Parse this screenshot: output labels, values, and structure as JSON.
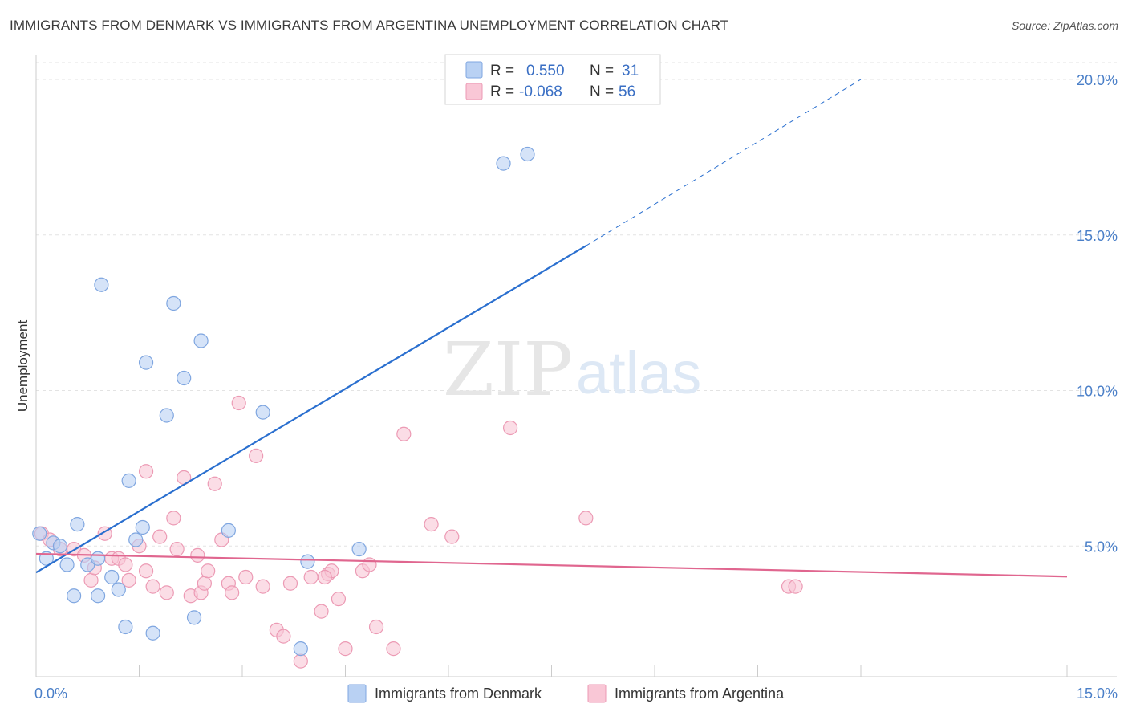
{
  "header": {
    "title": "IMMIGRANTS FROM DENMARK VS IMMIGRANTS FROM ARGENTINA UNEMPLOYMENT CORRELATION CHART",
    "source": "Source: ZipAtlas.com"
  },
  "watermark": {
    "zip": "ZIP",
    "atlas": "atlas"
  },
  "legend": {
    "rows": [
      {
        "r_label": "R =",
        "r_value": "0.550",
        "n_label": "N =",
        "n_value": "31"
      },
      {
        "r_label": "R =",
        "r_value": "-0.068",
        "n_label": "N =",
        "n_value": "56"
      }
    ]
  },
  "colors": {
    "denmark_fill": "#b9d1f3",
    "denmark_stroke": "#7fa6e0",
    "denmark_line": "#2a6fcf",
    "argentina_fill": "#f9c7d6",
    "argentina_stroke": "#ec9ab4",
    "argentina_line": "#e0668f",
    "tick_text": "#4a7fc8",
    "grid": "#e3e3e3"
  },
  "chart_data": {
    "type": "scatter",
    "title": "IMMIGRANTS FROM DENMARK VS IMMIGRANTS FROM ARGENTINA UNEMPLOYMENT CORRELATION CHART",
    "xlabel": "",
    "ylabel": "Unemployment",
    "xlim": [
      0,
      15
    ],
    "ylim": [
      0.8,
      20.8
    ],
    "x_ticks": [
      0,
      15
    ],
    "x_tick_labels": [
      "0.0%",
      "15.0%"
    ],
    "y_ticks": [
      5,
      10,
      15,
      20
    ],
    "y_tick_labels": [
      "5.0%",
      "10.0%",
      "15.0%",
      "20.0%"
    ],
    "grid": true,
    "legend_position": "top-center",
    "series": [
      {
        "name": "Immigrants from Denmark",
        "points": [
          [
            0.05,
            5.4
          ],
          [
            0.15,
            4.6
          ],
          [
            0.25,
            5.1
          ],
          [
            0.35,
            5.0
          ],
          [
            0.45,
            4.4
          ],
          [
            0.6,
            5.7
          ],
          [
            0.75,
            4.4
          ],
          [
            0.55,
            3.4
          ],
          [
            0.9,
            4.6
          ],
          [
            0.9,
            3.4
          ],
          [
            1.1,
            4.0
          ],
          [
            1.2,
            3.6
          ],
          [
            1.3,
            2.4
          ],
          [
            1.35,
            7.1
          ],
          [
            1.45,
            5.2
          ],
          [
            1.55,
            5.6
          ],
          [
            1.6,
            10.9
          ],
          [
            1.7,
            2.2
          ],
          [
            1.9,
            9.2
          ],
          [
            2.0,
            12.8
          ],
          [
            2.15,
            10.4
          ],
          [
            2.3,
            2.7
          ],
          [
            2.4,
            11.6
          ],
          [
            2.8,
            5.5
          ],
          [
            3.3,
            9.3
          ],
          [
            0.95,
            13.4
          ],
          [
            3.85,
            1.7
          ],
          [
            3.95,
            4.5
          ],
          [
            4.7,
            4.9
          ],
          [
            6.8,
            17.3
          ],
          [
            7.15,
            17.6
          ]
        ],
        "trend": {
          "x": [
            0.0,
            8.0
          ],
          "y": [
            4.15,
            14.65
          ],
          "dashed_to_x": 12.0,
          "dashed_to_y": 20.0
        }
      },
      {
        "name": "Immigrants from Argentina",
        "points": [
          [
            0.08,
            5.4
          ],
          [
            0.2,
            5.2
          ],
          [
            0.35,
            4.9
          ],
          [
            0.55,
            4.9
          ],
          [
            0.7,
            4.7
          ],
          [
            0.8,
            3.9
          ],
          [
            0.85,
            4.3
          ],
          [
            1.0,
            5.4
          ],
          [
            1.1,
            4.6
          ],
          [
            1.2,
            4.6
          ],
          [
            1.3,
            4.4
          ],
          [
            1.35,
            3.9
          ],
          [
            1.5,
            5.0
          ],
          [
            1.6,
            7.4
          ],
          [
            1.7,
            3.7
          ],
          [
            1.8,
            5.3
          ],
          [
            1.9,
            3.5
          ],
          [
            2.0,
            5.9
          ],
          [
            2.05,
            4.9
          ],
          [
            2.15,
            7.2
          ],
          [
            2.25,
            3.4
          ],
          [
            2.35,
            4.7
          ],
          [
            2.4,
            3.5
          ],
          [
            2.45,
            3.8
          ],
          [
            2.6,
            7.0
          ],
          [
            2.7,
            5.2
          ],
          [
            2.8,
            3.8
          ],
          [
            2.85,
            3.5
          ],
          [
            2.95,
            9.6
          ],
          [
            3.05,
            4.0
          ],
          [
            3.2,
            7.9
          ],
          [
            3.3,
            3.7
          ],
          [
            3.5,
            2.3
          ],
          [
            3.6,
            2.1
          ],
          [
            3.7,
            3.8
          ],
          [
            3.85,
            1.3
          ],
          [
            4.0,
            4.0
          ],
          [
            4.15,
            2.9
          ],
          [
            4.25,
            4.1
          ],
          [
            4.3,
            4.2
          ],
          [
            4.4,
            3.3
          ],
          [
            4.5,
            1.7
          ],
          [
            4.75,
            4.2
          ],
          [
            4.85,
            4.4
          ],
          [
            4.95,
            2.4
          ],
          [
            5.2,
            1.7
          ],
          [
            5.35,
            8.6
          ],
          [
            5.75,
            5.7
          ],
          [
            6.05,
            5.3
          ],
          [
            6.9,
            8.8
          ],
          [
            8.0,
            5.9
          ],
          [
            10.95,
            3.7
          ],
          [
            11.05,
            3.7
          ],
          [
            1.6,
            4.2
          ],
          [
            2.5,
            4.2
          ],
          [
            4.2,
            4.0
          ]
        ],
        "trend": {
          "x": [
            0.0,
            15.0
          ],
          "y": [
            4.75,
            4.02
          ]
        }
      }
    ]
  }
}
